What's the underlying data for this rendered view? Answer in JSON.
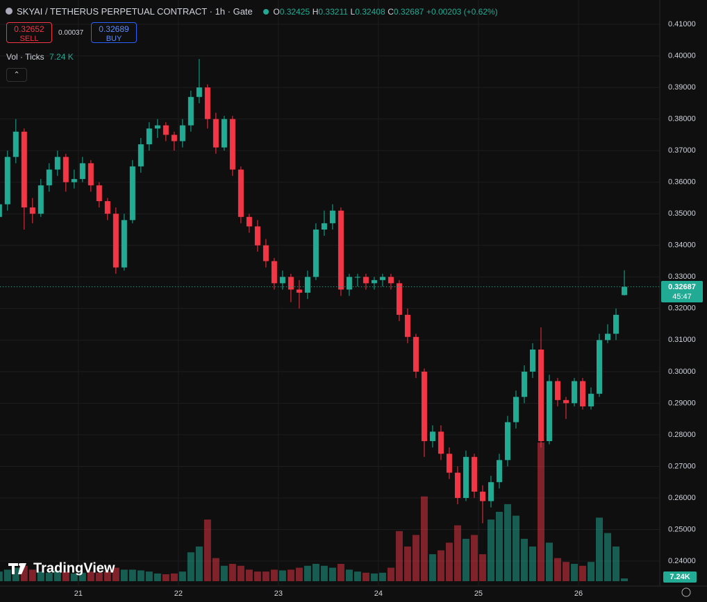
{
  "header": {
    "title": "SKYAI / TETHERUS PERPETUAL CONTRACT · 1h · Gate",
    "o_label": "O",
    "o": "0.32425",
    "h_label": "H",
    "h": "0.33211",
    "l_label": "L",
    "l": "0.32408",
    "c_label": "C",
    "c": "0.32687",
    "change": "+0.00203 (+0.62%)",
    "sell_price": "0.32652",
    "sell": "SELL",
    "spread": "0.00037",
    "buy_price": "0.32689",
    "buy": "BUY",
    "vol_name": "Vol · Ticks",
    "vol_value": "7.24 K",
    "logo": "TradingView",
    "price_tag": "0.32687",
    "countdown": "45:47",
    "vol_tag": "7.24K"
  },
  "chart_data": {
    "type": "candlestick",
    "up_color": "#22ab94",
    "down_color": "#f23645",
    "grid": true,
    "x": [
      5,
      7,
      9,
      11,
      13,
      15,
      17,
      19,
      21,
      23,
      25,
      27,
      29,
      31,
      33,
      35,
      37,
      39,
      41,
      43,
      45,
      47,
      49,
      51,
      53,
      55,
      57,
      59,
      61,
      63,
      65,
      67,
      69,
      71,
      73,
      75,
      77,
      79,
      81,
      83,
      85,
      87,
      89,
      91,
      93,
      95,
      97,
      99,
      101,
      103,
      105,
      107,
      109,
      111,
      113,
      115,
      117,
      119,
      121,
      123,
      125,
      127,
      129,
      131,
      133,
      135,
      137,
      139,
      141,
      143,
      145,
      147,
      149,
      151,
      153,
      155
    ],
    "open": [
      0.349,
      0.353,
      0.368,
      0.376,
      0.352,
      0.35,
      0.359,
      0.364,
      0.368,
      0.36,
      0.361,
      0.366,
      0.359,
      0.354,
      0.35,
      0.333,
      0.348,
      0.365,
      0.372,
      0.377,
      0.378,
      0.375,
      0.373,
      0.378,
      0.387,
      0.39,
      0.38,
      0.371,
      0.38,
      0.364,
      0.349,
      0.346,
      0.34,
      0.335,
      0.328,
      0.33,
      0.326,
      0.325,
      0.33,
      0.345,
      0.347,
      0.351,
      0.326,
      0.33,
      0.33,
      0.328,
      0.329,
      0.33,
      0.328,
      0.318,
      0.311,
      0.3,
      0.278,
      0.281,
      0.274,
      0.268,
      0.26,
      0.273,
      0.262,
      0.259,
      0.265,
      0.272,
      0.284,
      0.292,
      0.3,
      0.307,
      0.278,
      0.297,
      0.291,
      0.29,
      0.297,
      0.289,
      0.293,
      0.31,
      0.312,
      0.32425
    ],
    "high": [
      0.356,
      0.37,
      0.38,
      0.377,
      0.355,
      0.361,
      0.366,
      0.37,
      0.369,
      0.364,
      0.368,
      0.367,
      0.36,
      0.355,
      0.352,
      0.35,
      0.367,
      0.374,
      0.379,
      0.38,
      0.379,
      0.376,
      0.38,
      0.389,
      0.399,
      0.391,
      0.382,
      0.381,
      0.381,
      0.365,
      0.35,
      0.348,
      0.342,
      0.336,
      0.332,
      0.331,
      0.329,
      0.332,
      0.347,
      0.351,
      0.353,
      0.352,
      0.331,
      0.331,
      0.331,
      0.33,
      0.331,
      0.331,
      0.329,
      0.32,
      0.312,
      0.301,
      0.283,
      0.283,
      0.276,
      0.27,
      0.275,
      0.274,
      0.264,
      0.267,
      0.274,
      0.286,
      0.294,
      0.302,
      0.309,
      0.314,
      0.299,
      0.298,
      0.292,
      0.298,
      0.298,
      0.295,
      0.312,
      0.315,
      0.32,
      0.33211
    ],
    "low": [
      0.347,
      0.351,
      0.366,
      0.345,
      0.347,
      0.349,
      0.357,
      0.362,
      0.357,
      0.358,
      0.36,
      0.357,
      0.352,
      0.348,
      0.331,
      0.332,
      0.347,
      0.363,
      0.37,
      0.374,
      0.373,
      0.37,
      0.371,
      0.376,
      0.385,
      0.377,
      0.369,
      0.37,
      0.362,
      0.347,
      0.344,
      0.338,
      0.333,
      0.326,
      0.326,
      0.322,
      0.32,
      0.323,
      0.329,
      0.343,
      0.345,
      0.324,
      0.324,
      0.327,
      0.326,
      0.326,
      0.327,
      0.326,
      0.316,
      0.309,
      0.298,
      0.273,
      0.276,
      0.272,
      0.266,
      0.258,
      0.259,
      0.26,
      0.252,
      0.257,
      0.263,
      0.27,
      0.282,
      0.29,
      0.298,
      0.276,
      0.277,
      0.289,
      0.285,
      0.289,
      0.288,
      0.288,
      0.292,
      0.309,
      0.31,
      0.32408
    ],
    "close": [
      0.353,
      0.368,
      0.376,
      0.352,
      0.35,
      0.359,
      0.364,
      0.368,
      0.36,
      0.361,
      0.366,
      0.359,
      0.354,
      0.35,
      0.333,
      0.348,
      0.365,
      0.372,
      0.377,
      0.378,
      0.375,
      0.373,
      0.378,
      0.387,
      0.39,
      0.38,
      0.371,
      0.38,
      0.364,
      0.349,
      0.346,
      0.34,
      0.335,
      0.328,
      0.33,
      0.326,
      0.325,
      0.33,
      0.345,
      0.347,
      0.351,
      0.326,
      0.33,
      0.33,
      0.328,
      0.329,
      0.33,
      0.328,
      0.318,
      0.311,
      0.3,
      0.278,
      0.281,
      0.274,
      0.268,
      0.26,
      0.273,
      0.262,
      0.259,
      0.265,
      0.272,
      0.284,
      0.292,
      0.3,
      0.307,
      0.278,
      0.297,
      0.291,
      0.29,
      0.297,
      0.289,
      0.293,
      0.31,
      0.312,
      0.318,
      0.32687
    ],
    "volume": [
      25,
      30,
      35,
      40,
      30,
      25,
      22,
      28,
      25,
      20,
      22,
      25,
      22,
      25,
      35,
      30,
      30,
      28,
      25,
      20,
      18,
      20,
      25,
      75,
      90,
      160,
      60,
      40,
      45,
      40,
      30,
      25,
      25,
      30,
      28,
      30,
      35,
      40,
      45,
      40,
      35,
      45,
      30,
      25,
      22,
      20,
      22,
      35,
      130,
      90,
      120,
      220,
      70,
      80,
      100,
      145,
      110,
      120,
      70,
      160,
      180,
      200,
      170,
      110,
      90,
      360,
      100,
      60,
      50,
      45,
      40,
      50,
      165,
      125,
      90,
      7.24
    ],
    "xlim": [
      5.2,
      163.5
    ],
    "xticks": [
      {
        "value": 24,
        "label": "21"
      },
      {
        "value": 48,
        "label": "22"
      },
      {
        "value": 72,
        "label": "23"
      },
      {
        "value": 96,
        "label": "24"
      },
      {
        "value": 120,
        "label": "25"
      },
      {
        "value": 144,
        "label": "26"
      }
    ],
    "ylim": [
      0.2321,
      0.4177
    ],
    "yticks": [
      {
        "value": 0.24,
        "label": "0.24000"
      },
      {
        "value": 0.25,
        "label": "0.25000"
      },
      {
        "value": 0.26,
        "label": "0.26000"
      },
      {
        "value": 0.27,
        "label": "0.27000"
      },
      {
        "value": 0.28,
        "label": "0.28000"
      },
      {
        "value": 0.29,
        "label": "0.29000"
      },
      {
        "value": 0.3,
        "label": "0.30000"
      },
      {
        "value": 0.31,
        "label": "0.31000"
      },
      {
        "value": 0.32,
        "label": "0.32000"
      },
      {
        "value": 0.33,
        "label": "0.33000"
      },
      {
        "value": 0.34,
        "label": "0.34000"
      },
      {
        "value": 0.35,
        "label": "0.35000"
      },
      {
        "value": 0.36,
        "label": "0.36000"
      },
      {
        "value": 0.37,
        "label": "0.37000"
      },
      {
        "value": 0.38,
        "label": "0.38000"
      },
      {
        "value": 0.39,
        "label": "0.39000"
      },
      {
        "value": 0.4,
        "label": "0.40000"
      },
      {
        "value": 0.41,
        "label": "0.41000"
      }
    ]
  }
}
